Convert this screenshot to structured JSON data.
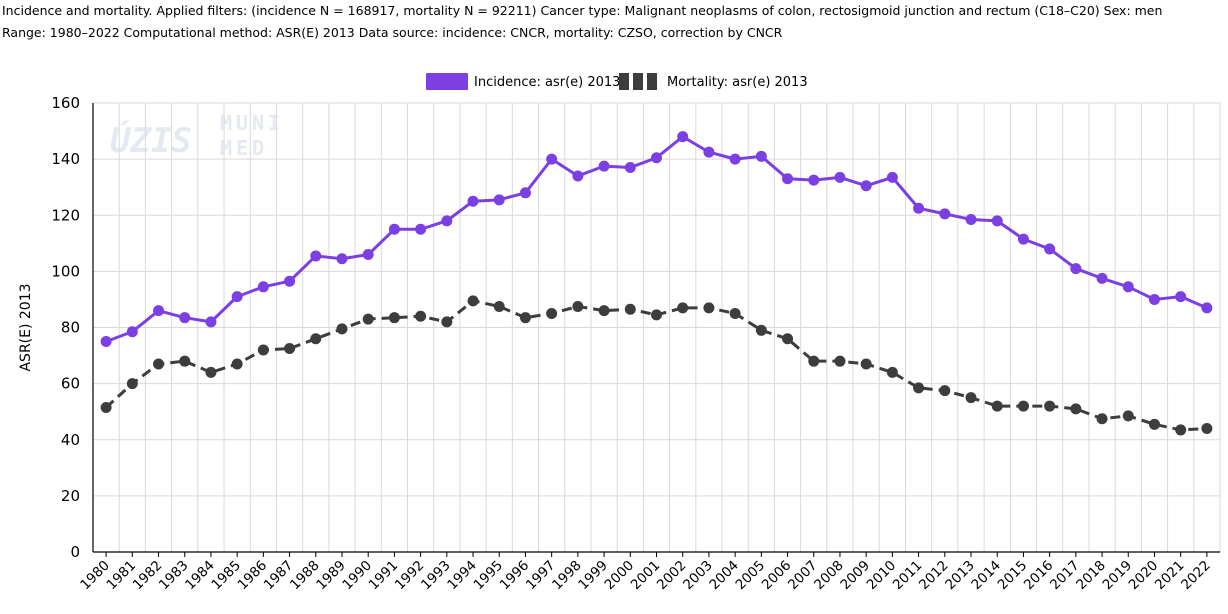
{
  "header": {
    "line1": "Incidence and mortality. Applied filters: (incidence N = 168917, mortality N = 92211) Cancer type: Malignant neoplasms of colon, rectosigmoid junction and rectum (C18–C20) Sex: men",
    "line2": "Range: 1980–2022 Computational method: ASR(E) 2013 Data source: incidence: CNCR, mortality: CZSO, correction by CNCR"
  },
  "watermark": {
    "left": "ÚZIS",
    "right_top": "MUNI",
    "right_bottom": "MED"
  },
  "colors": {
    "incidence": "#7b3fe4",
    "mortality": "#3d3d3d",
    "grid": "#d9d9d9"
  },
  "chart_data": {
    "type": "line",
    "ylabel": "ASR(E) 2013",
    "ylim": [
      0,
      160
    ],
    "yticks": [
      "0",
      "20",
      "40",
      "60",
      "80",
      "100",
      "120",
      "140",
      "160"
    ],
    "grid": true,
    "legend_position": "top-center",
    "x": [
      "1980",
      "1981",
      "1982",
      "1983",
      "1984",
      "1985",
      "1986",
      "1987",
      "1988",
      "1989",
      "1990",
      "1991",
      "1992",
      "1993",
      "1994",
      "1995",
      "1996",
      "1997",
      "1998",
      "1999",
      "2000",
      "2001",
      "2002",
      "2003",
      "2004",
      "2005",
      "2006",
      "2007",
      "2008",
      "2009",
      "2010",
      "2011",
      "2012",
      "2013",
      "2014",
      "2015",
      "2016",
      "2017",
      "2018",
      "2019",
      "2020",
      "2021",
      "2022"
    ],
    "series": [
      {
        "name": "Incidence: asr(e) 2013",
        "style": "solid",
        "values": [
          75.0,
          78.5,
          86.0,
          83.5,
          82.0,
          91.0,
          94.5,
          96.5,
          105.5,
          104.5,
          106.0,
          115.0,
          115.0,
          118.0,
          125.0,
          125.5,
          128.0,
          140.0,
          134.0,
          137.5,
          137.0,
          140.5,
          148.0,
          142.5,
          140.0,
          141.0,
          133.0,
          132.5,
          133.5,
          130.5,
          133.5,
          122.5,
          120.5,
          118.5,
          118.0,
          111.5,
          108.0,
          101.0,
          97.5,
          94.5,
          90.0,
          91.0,
          87.0
        ]
      },
      {
        "name": "Mortality: asr(e) 2013",
        "style": "dashed",
        "values": [
          51.5,
          60.0,
          67.0,
          68.0,
          64.0,
          67.0,
          72.0,
          72.5,
          76.0,
          79.5,
          83.0,
          83.5,
          84.0,
          82.0,
          89.5,
          87.5,
          83.5,
          85.0,
          87.5,
          86.0,
          86.5,
          84.5,
          87.0,
          87.0,
          85.0,
          79.0,
          76.0,
          68.0,
          68.0,
          67.0,
          64.0,
          58.5,
          57.5,
          55.0,
          52.0,
          52.0,
          52.0,
          51.0,
          47.5,
          48.5,
          45.5,
          43.5,
          44.0
        ]
      }
    ]
  }
}
